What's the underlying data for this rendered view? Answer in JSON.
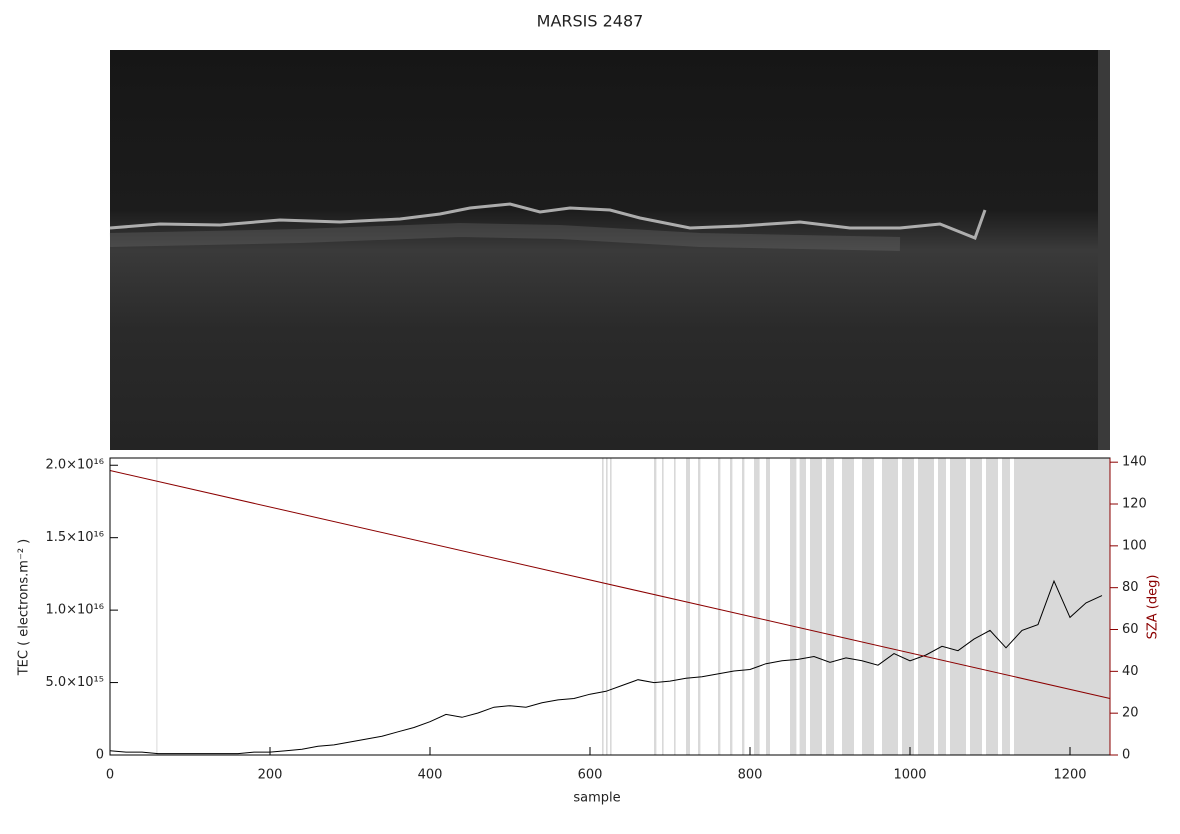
{
  "chart_data": {
    "type": "line",
    "title": "MARSIS 2487",
    "xlabel": "sample",
    "ylabel": "TEC ( electrons.m⁻² )",
    "y2label": "SZA (deg)",
    "xlim": [
      0,
      1250
    ],
    "xticks": [
      0,
      200,
      400,
      600,
      800,
      1000,
      1200
    ],
    "ylim": [
      0,
      2.05e+16
    ],
    "yticks": [
      0,
      {
        "value": 5000000000000000.0,
        "label": "5.0×10¹⁵"
      },
      {
        "value": 1e+16,
        "label": "1.0×10¹⁶"
      },
      {
        "value": 1.5e+16,
        "label": "1.5×10¹⁶"
      },
      {
        "value": 2e+16,
        "label": "2.0×10¹⁶"
      }
    ],
    "y2lim": [
      0,
      142
    ],
    "y2ticks": [
      0,
      20,
      40,
      60,
      80,
      100,
      120,
      140
    ],
    "y2color": "#8b0000",
    "span_color": "#d9d9d9",
    "shaded_spans": [
      [
        58,
        59
      ],
      [
        615,
        617
      ],
      [
        620,
        622
      ],
      [
        625,
        627
      ],
      [
        680,
        683
      ],
      [
        690,
        692
      ],
      [
        705,
        707
      ],
      [
        720,
        725
      ],
      [
        735,
        738
      ],
      [
        760,
        763
      ],
      [
        775,
        778
      ],
      [
        790,
        793
      ],
      [
        805,
        812
      ],
      [
        820,
        825
      ],
      [
        850,
        858
      ],
      [
        862,
        870
      ],
      [
        875,
        890
      ],
      [
        895,
        905
      ],
      [
        915,
        930
      ],
      [
        940,
        955
      ],
      [
        965,
        985
      ],
      [
        990,
        1005
      ],
      [
        1010,
        1030
      ],
      [
        1035,
        1045
      ],
      [
        1050,
        1070
      ],
      [
        1075,
        1090
      ],
      [
        1095,
        1110
      ],
      [
        1115,
        1125
      ],
      [
        1130,
        1250
      ]
    ],
    "series": [
      {
        "color": "#000000",
        "x": [
          0,
          20,
          40,
          60,
          80,
          100,
          120,
          140,
          160,
          180,
          200,
          220,
          240,
          260,
          280,
          300,
          320,
          340,
          360,
          380,
          400,
          420,
          440,
          460,
          480,
          500,
          520,
          540,
          560,
          580,
          600,
          620,
          640,
          660,
          680,
          700,
          720,
          740,
          760,
          780,
          800,
          820,
          840,
          860,
          880,
          900,
          920,
          940,
          960,
          980,
          1000,
          1020,
          1040,
          1060,
          1080,
          1100,
          1120,
          1140,
          1160,
          1180,
          1200,
          1220,
          1240
        ],
        "values": [
          300000000000000.0,
          200000000000000.0,
          200000000000000.0,
          100000000000000.0,
          100000000000000.0,
          100000000000000.0,
          100000000000000.0,
          100000000000000.0,
          100000000000000.0,
          200000000000000.0,
          200000000000000.0,
          300000000000000.0,
          400000000000000.0,
          600000000000000.0,
          700000000000000.0,
          900000000000000.0,
          1100000000000000.0,
          1300000000000000.0,
          1600000000000000.0,
          1900000000000000.0,
          2300000000000000.0,
          2800000000000000.0,
          2600000000000000.0,
          2900000000000000.0,
          3300000000000000.0,
          3400000000000000.0,
          3300000000000000.0,
          3600000000000000.0,
          3800000000000000.0,
          3900000000000000.0,
          4200000000000000.0,
          4400000000000000.0,
          4800000000000000.0,
          5200000000000000.0,
          5000000000000000.0,
          5100000000000000.0,
          5300000000000000.0,
          5400000000000000.0,
          5600000000000000.0,
          5800000000000000.0,
          5900000000000000.0,
          6300000000000000.0,
          6500000000000000.0,
          6600000000000000.0,
          6800000000000000.0,
          6400000000000000.0,
          6700000000000000.0,
          6500000000000000.0,
          6200000000000000.0,
          7000000000000000.0,
          6500000000000000.0,
          6900000000000000.0,
          7500000000000000.0,
          7200000000000000.0,
          8000000000000000.0,
          8600000000000000.0,
          7400000000000000.0,
          8600000000000000.0,
          9000000000000000.0,
          1.2e+16,
          9500000000000000.0,
          1.05e+16,
          1.1e+16
        ]
      },
      {
        "color": "#8b0000",
        "axis": "y2",
        "x": [
          0,
          1250
        ],
        "values": [
          136,
          27
        ]
      }
    ]
  }
}
